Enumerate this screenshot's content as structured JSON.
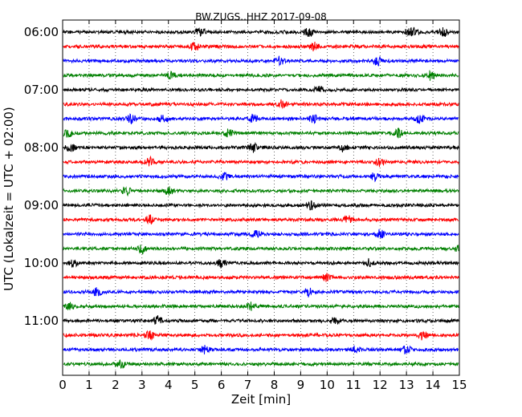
{
  "chart_data": {
    "type": "line",
    "title": "BW.ZUGS..HHZ 2017-09-08",
    "xlabel": "Zeit  [min]",
    "ylabel": "UTC (Lokalzeit = UTC + 02:00)",
    "xlim": [
      0,
      15
    ],
    "x_ticks": [
      "0",
      "1",
      "2",
      "3",
      "4",
      "5",
      "6",
      "7",
      "8",
      "9",
      "10",
      "11",
      "12",
      "13",
      "14",
      "15"
    ],
    "y_tick_labels": [
      "06:00",
      "07:00",
      "08:00",
      "09:00",
      "10:00",
      "11:00"
    ],
    "grid": "vertical dotted",
    "trace_interval_minutes": 15,
    "trace_colors": [
      "#000000",
      "#ff0000",
      "#0000ff",
      "#008000"
    ],
    "series": [
      {
        "start": "06:00",
        "events_min": [
          5.2,
          9.3,
          13.1,
          13.3,
          14.4
        ]
      },
      {
        "start": "06:15",
        "events_min": [
          5.0,
          9.5
        ]
      },
      {
        "start": "06:30",
        "events_min": [
          8.2,
          11.9
        ]
      },
      {
        "start": "06:45",
        "events_min": [
          4.1,
          13.9
        ]
      },
      {
        "start": "07:00",
        "events_min": [
          9.7
        ]
      },
      {
        "start": "07:15",
        "events_min": [
          8.3
        ]
      },
      {
        "start": "07:30",
        "events_min": [
          2.6,
          3.8,
          7.2,
          9.5,
          13.5
        ]
      },
      {
        "start": "07:45",
        "events_min": [
          0.2,
          6.3,
          12.7
        ]
      },
      {
        "start": "08:00",
        "events_min": [
          0.3,
          7.2,
          10.6
        ]
      },
      {
        "start": "08:15",
        "events_min": [
          3.3,
          12.0
        ]
      },
      {
        "start": "08:30",
        "events_min": [
          6.1,
          11.8
        ]
      },
      {
        "start": "08:45",
        "events_min": [
          2.4,
          4.0
        ]
      },
      {
        "start": "09:00",
        "events_min": [
          9.4
        ]
      },
      {
        "start": "09:15",
        "events_min": [
          3.3,
          10.8
        ]
      },
      {
        "start": "09:30",
        "events_min": [
          7.3,
          12.0
        ]
      },
      {
        "start": "09:45",
        "events_min": [
          3.0,
          15.0
        ]
      },
      {
        "start": "10:00",
        "events_min": [
          0.4,
          6.0,
          11.6
        ]
      },
      {
        "start": "10:15",
        "events_min": [
          10.0
        ]
      },
      {
        "start": "10:30",
        "events_min": [
          1.3,
          9.3
        ]
      },
      {
        "start": "10:45",
        "events_min": [
          0.3,
          7.1
        ]
      },
      {
        "start": "11:00",
        "events_min": [
          3.6,
          10.3
        ]
      },
      {
        "start": "11:15",
        "events_min": [
          3.3,
          13.6
        ]
      },
      {
        "start": "11:30",
        "events_min": [
          5.4,
          11.1,
          13.0
        ]
      },
      {
        "start": "11:45",
        "events_min": [
          2.2
        ]
      }
    ]
  }
}
